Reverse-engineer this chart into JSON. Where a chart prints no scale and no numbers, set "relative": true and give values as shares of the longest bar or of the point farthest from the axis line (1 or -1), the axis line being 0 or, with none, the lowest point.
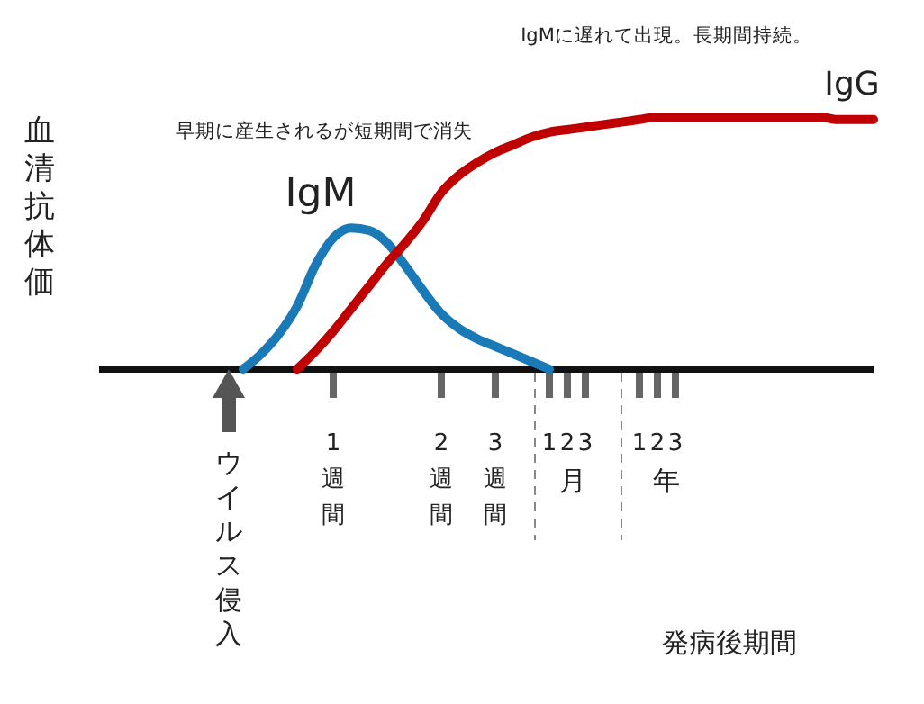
{
  "chart_data": {
    "type": "line",
    "relative": true,
    "ylabel": "血清抗体価",
    "categories": [
      null,
      null,
      null,
      null,
      null,
      null,
      null,
      null,
      null,
      null,
      null,
      null,
      null,
      "1週間",
      null,
      null,
      null,
      null,
      null,
      "2週間",
      null,
      null,
      "3週間",
      null,
      null,
      "1",
      "2",
      "3",
      null,
      null,
      "1",
      "2",
      "3",
      null,
      null,
      null,
      null,
      null,
      null,
      null,
      null,
      null,
      null,
      null
    ],
    "annotations": [
      "早期に産生されるが短期間で消失",
      "IgMに遅れて出現。長期間持続。",
      "ウイルス侵入",
      "月",
      "年",
      "発病後期間"
    ],
    "legend": false,
    "line_style": "solid",
    "marker": "none",
    "series": [
      {
        "name": "IgM",
        "color": "#1a7ab8",
        "values": [
          null,
          null,
          null,
          null,
          null,
          null,
          null,
          null,
          0,
          0.06,
          0.14,
          0.25,
          0.41,
          0.52,
          0.56,
          0.55,
          0.5,
          0.41,
          0.31,
          0.22,
          0.16,
          0.12,
          0.09,
          0.06,
          0.03,
          0,
          null,
          null,
          null,
          null,
          null,
          null,
          null,
          null,
          null,
          null,
          null,
          null,
          null,
          null,
          null,
          null,
          null,
          null
        ]
      },
      {
        "name": "IgG",
        "color": "#c00000",
        "values": [
          null,
          null,
          null,
          null,
          null,
          null,
          null,
          null,
          null,
          null,
          null,
          0,
          0.07,
          0.15,
          0.24,
          0.33,
          0.42,
          0.5,
          0.59,
          0.7,
          0.77,
          0.82,
          0.86,
          0.89,
          0.92,
          0.94,
          0.95,
          0.96,
          0.97,
          0.98,
          0.99,
          1,
          1,
          1,
          1,
          1,
          1,
          1,
          1,
          1,
          1,
          0.99,
          0.99,
          0.99
        ]
      }
    ]
  }
}
